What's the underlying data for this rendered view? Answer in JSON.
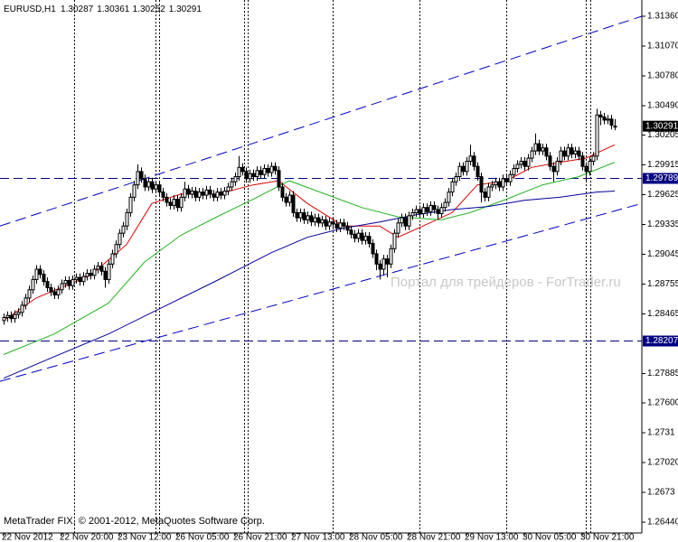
{
  "chart_data": {
    "type": "candlestick",
    "symbol": "EURUSD,H1",
    "watermark": "Портал для трейдеров - ForTrader.ru",
    "copyright": "MetaTrader FIX, © 2001-2012, MetaQuotes Software Corp.",
    "xlim": [
      -1,
      176.5
    ],
    "ylim": [
      1.26335,
      1.31518
    ],
    "yticks": [
      {
        "value": 1.3136,
        "label": "1.31360"
      },
      {
        "value": 1.3107,
        "label": "1.31070"
      },
      {
        "value": 1.3078,
        "label": "1.30780"
      },
      {
        "value": 1.3049,
        "label": "1.30490"
      },
      1.30205,
      1.29915,
      1.29625,
      1.29335,
      1.29045,
      1.28755,
      1.28465,
      1.27885,
      {
        "value": 1.276,
        "label": "1.27600"
      },
      1.2731,
      {
        "value": 1.2702,
        "label": "1.27020"
      },
      1.2673,
      {
        "value": 1.2644,
        "label": "1.26440"
      }
    ],
    "xticks": [
      {
        "value": 0,
        "label": "22 Nov 2012"
      },
      {
        "value": 16,
        "label": "22 Nov 20:00"
      },
      {
        "value": 32,
        "label": "23 Nov 12:00"
      },
      {
        "value": 48,
        "label": "26 Nov 05:00"
      },
      {
        "value": 64,
        "label": "26 Nov 21:00"
      },
      {
        "value": 80,
        "label": "27 Nov 13:00"
      },
      {
        "value": 96,
        "label": "28 Nov 05:00"
      },
      {
        "value": 112,
        "label": "28 Nov 21:00"
      },
      {
        "value": 128,
        "label": "29 Nov 13:00"
      },
      {
        "value": 144,
        "label": "30 Nov 05:00"
      },
      {
        "value": 160,
        "label": "30 Nov 21:00"
      }
    ],
    "period_separators": [
      19.5,
      42,
      43,
      66.5,
      67.5,
      91,
      115,
      139,
      161,
      162.2
    ],
    "hlines": [
      {
        "value": 1.29789,
        "label": "1.29789",
        "color": "#000080"
      },
      {
        "value": 1.28207,
        "label": "1.28207",
        "color": "#000080"
      }
    ],
    "current_price": {
      "value": 1.30291,
      "label": "1.30291",
      "color": "#000000"
    },
    "ohlc": [
      [
        1.284,
        1.2847,
        1.2836,
        1.2843
      ],
      [
        1.2843,
        1.2849,
        1.2839,
        1.2845
      ],
      [
        1.2845,
        1.2849,
        1.2838,
        1.2842
      ],
      [
        1.2842,
        1.285,
        1.2838,
        1.2846
      ],
      [
        1.2846,
        1.2852,
        1.2842,
        1.2848
      ],
      [
        1.2848,
        1.2859,
        1.2844,
        1.2855
      ],
      [
        1.2855,
        1.2866,
        1.2851,
        1.2862
      ],
      [
        1.2862,
        1.2874,
        1.2858,
        1.287
      ],
      [
        1.287,
        1.2884,
        1.2866,
        1.288
      ],
      [
        1.288,
        1.2894,
        1.2876,
        1.289
      ],
      [
        1.289,
        1.2894,
        1.2881,
        1.2885
      ],
      [
        1.2885,
        1.2889,
        1.2874,
        1.2878
      ],
      [
        1.2878,
        1.2882,
        1.2868,
        1.2872
      ],
      [
        1.2872,
        1.2876,
        1.2864,
        1.2868
      ],
      [
        1.2868,
        1.2872,
        1.2861,
        1.2865
      ],
      [
        1.2865,
        1.2874,
        1.2861,
        1.287
      ],
      [
        1.287,
        1.288,
        1.2866,
        1.2876
      ],
      [
        1.2876,
        1.2883,
        1.2872,
        1.2879
      ],
      [
        1.2879,
        1.2883,
        1.287,
        1.2874
      ],
      [
        1.2874,
        1.2884,
        1.287,
        1.288
      ],
      [
        1.288,
        1.2886,
        1.2876,
        1.2882
      ],
      [
        1.2882,
        1.2886,
        1.2874,
        1.2878
      ],
      [
        1.2878,
        1.2887,
        1.2874,
        1.2883
      ],
      [
        1.2883,
        1.289,
        1.2879,
        1.2886
      ],
      [
        1.2886,
        1.289,
        1.288,
        1.2884
      ],
      [
        1.2884,
        1.2894,
        1.288,
        1.289
      ],
      [
        1.289,
        1.2897,
        1.2886,
        1.2893
      ],
      [
        1.2893,
        1.2897,
        1.2884,
        1.2888
      ],
      [
        1.2888,
        1.2892,
        1.2872,
        1.288
      ],
      [
        1.288,
        1.2899,
        1.2876,
        1.2895
      ],
      [
        1.2895,
        1.2909,
        1.2891,
        1.2905
      ],
      [
        1.2905,
        1.2918,
        1.2901,
        1.2914
      ],
      [
        1.2914,
        1.2929,
        1.291,
        1.2925
      ],
      [
        1.2925,
        1.2936,
        1.2921,
        1.2932
      ],
      [
        1.2932,
        1.2949,
        1.2928,
        1.2945
      ],
      [
        1.2945,
        1.2964,
        1.2941,
        1.296
      ],
      [
        1.296,
        1.2976,
        1.2956,
        1.2972
      ],
      [
        1.2972,
        1.2992,
        1.2968,
        1.2985
      ],
      [
        1.2985,
        1.2989,
        1.2974,
        1.2978
      ],
      [
        1.2978,
        1.2982,
        1.2966,
        1.297
      ],
      [
        1.297,
        1.2979,
        1.2966,
        1.2975
      ],
      [
        1.2975,
        1.2979,
        1.2964,
        1.2968
      ],
      [
        1.2968,
        1.2976,
        1.2964,
        1.2972
      ],
      [
        1.2972,
        1.2976,
        1.2961,
        1.2965
      ],
      [
        1.2965,
        1.2969,
        1.2956,
        1.296
      ],
      [
        1.296,
        1.2964,
        1.2951,
        1.2955
      ],
      [
        1.2955,
        1.2959,
        1.2948,
        1.2952
      ],
      [
        1.2952,
        1.2962,
        1.2948,
        1.2958
      ],
      [
        1.2958,
        1.2962,
        1.2946,
        1.295
      ],
      [
        1.295,
        1.2964,
        1.2946,
        1.296
      ],
      [
        1.296,
        1.2975,
        1.2956,
        1.2968
      ],
      [
        1.2968,
        1.2972,
        1.2959,
        1.2963
      ],
      [
        1.2963,
        1.297,
        1.2959,
        1.2966
      ],
      [
        1.2966,
        1.297,
        1.2956,
        1.296
      ],
      [
        1.296,
        1.2969,
        1.2956,
        1.2965
      ],
      [
        1.2965,
        1.2969,
        1.2958,
        1.2962
      ],
      [
        1.2962,
        1.2971,
        1.2958,
        1.2967
      ],
      [
        1.2967,
        1.2971,
        1.2959,
        1.2963
      ],
      [
        1.2963,
        1.2967,
        1.2956,
        1.296
      ],
      [
        1.296,
        1.2969,
        1.2956,
        1.2965
      ],
      [
        1.2965,
        1.2969,
        1.2958,
        1.2962
      ],
      [
        1.2962,
        1.297,
        1.2958,
        1.2966
      ],
      [
        1.2966,
        1.2974,
        1.2962,
        1.297
      ],
      [
        1.297,
        1.2979,
        1.2966,
        1.2975
      ],
      [
        1.2975,
        1.2984,
        1.2971,
        1.298
      ],
      [
        1.298,
        1.3,
        1.2976,
        1.2989
      ],
      [
        1.2989,
        1.2993,
        1.2981,
        1.2985
      ],
      [
        1.2985,
        1.2989,
        1.2974,
        1.2978
      ],
      [
        1.2978,
        1.2987,
        1.2974,
        1.2983
      ],
      [
        1.2983,
        1.2987,
        1.2976,
        1.298
      ],
      [
        1.298,
        1.299,
        1.2976,
        1.2986
      ],
      [
        1.2986,
        1.299,
        1.2978,
        1.2982
      ],
      [
        1.2982,
        1.2992,
        1.2978,
        1.2988
      ],
      [
        1.2988,
        1.2992,
        1.298,
        1.2984
      ],
      [
        1.2984,
        1.2994,
        1.298,
        1.299
      ],
      [
        1.299,
        1.2994,
        1.2982,
        1.2986
      ],
      [
        1.2986,
        1.299,
        1.2966,
        1.297
      ],
      [
        1.297,
        1.2974,
        1.2956,
        1.296
      ],
      [
        1.296,
        1.2964,
        1.2951,
        1.2955
      ],
      [
        1.2955,
        1.2966,
        1.2951,
        1.2962
      ],
      [
        1.2962,
        1.2966,
        1.2941,
        1.2945
      ],
      [
        1.2945,
        1.2949,
        1.2936,
        1.294
      ],
      [
        1.294,
        1.2949,
        1.2936,
        1.2945
      ],
      [
        1.2945,
        1.2949,
        1.2934,
        1.2938
      ],
      [
        1.2938,
        1.2946,
        1.2934,
        1.2942
      ],
      [
        1.2942,
        1.2946,
        1.2932,
        1.2936
      ],
      [
        1.2936,
        1.2944,
        1.2932,
        1.294
      ],
      [
        1.294,
        1.2944,
        1.2931,
        1.2935
      ],
      [
        1.2935,
        1.2942,
        1.2931,
        1.2938
      ],
      [
        1.2938,
        1.2942,
        1.2928,
        1.2932
      ],
      [
        1.2932,
        1.294,
        1.2928,
        1.2936
      ],
      [
        1.2936,
        1.294,
        1.293,
        1.2934
      ],
      [
        1.2934,
        1.2938,
        1.2926,
        1.293
      ],
      [
        1.293,
        1.2939,
        1.2926,
        1.2935
      ],
      [
        1.2935,
        1.2939,
        1.2928,
        1.2932
      ],
      [
        1.2932,
        1.2936,
        1.2924,
        1.2928
      ],
      [
        1.2928,
        1.2932,
        1.292,
        1.2924
      ],
      [
        1.2924,
        1.2928,
        1.2916,
        1.292
      ],
      [
        1.292,
        1.2929,
        1.2916,
        1.2925
      ],
      [
        1.2925,
        1.2929,
        1.2914,
        1.2918
      ],
      [
        1.2918,
        1.2926,
        1.2914,
        1.2922
      ],
      [
        1.2922,
        1.2926,
        1.2911,
        1.2915
      ],
      [
        1.2915,
        1.2919,
        1.2901,
        1.2905
      ],
      [
        1.2905,
        1.2909,
        1.2889,
        1.2895
      ],
      [
        1.2895,
        1.2899,
        1.288,
        1.289
      ],
      [
        1.289,
        1.2904,
        1.2884,
        1.29
      ],
      [
        1.29,
        1.2904,
        1.2882,
        1.2895
      ],
      [
        1.2895,
        1.2914,
        1.2891,
        1.291
      ],
      [
        1.291,
        1.2929,
        1.2906,
        1.2925
      ],
      [
        1.2925,
        1.2939,
        1.2921,
        1.2935
      ],
      [
        1.2935,
        1.2944,
        1.2931,
        1.294
      ],
      [
        1.294,
        1.2944,
        1.2928,
        1.2932
      ],
      [
        1.2932,
        1.2946,
        1.2928,
        1.2942
      ],
      [
        1.2942,
        1.2949,
        1.2938,
        1.2945
      ],
      [
        1.2945,
        1.2952,
        1.2941,
        1.2948
      ],
      [
        1.2948,
        1.2952,
        1.294,
        1.2944
      ],
      [
        1.2944,
        1.2954,
        1.294,
        1.295
      ],
      [
        1.295,
        1.2954,
        1.2942,
        1.2946
      ],
      [
        1.2946,
        1.2956,
        1.2942,
        1.2952
      ],
      [
        1.2952,
        1.2956,
        1.2944,
        1.2948
      ],
      [
        1.2948,
        1.2952,
        1.2938,
        1.2944
      ],
      [
        1.2944,
        1.2954,
        1.294,
        1.295
      ],
      [
        1.295,
        1.2959,
        1.2946,
        1.2955
      ],
      [
        1.2955,
        1.2969,
        1.2951,
        1.2965
      ],
      [
        1.2965,
        1.2979,
        1.2961,
        1.2975
      ],
      [
        1.2975,
        1.2984,
        1.2971,
        1.298
      ],
      [
        1.298,
        1.2994,
        1.2976,
        1.299
      ],
      [
        1.299,
        1.2994,
        1.2981,
        1.2985
      ],
      [
        1.2985,
        1.2999,
        1.2981,
        1.2995
      ],
      [
        1.2995,
        1.3011,
        1.2991,
        1.3
      ],
      [
        1.3,
        1.3004,
        1.2986,
        1.299
      ],
      [
        1.299,
        1.2994,
        1.2976,
        1.298
      ],
      [
        1.298,
        1.2984,
        1.2955,
        1.2965
      ],
      [
        1.2965,
        1.2969,
        1.2956,
        1.296
      ],
      [
        1.296,
        1.2974,
        1.2956,
        1.297
      ],
      [
        1.297,
        1.2976,
        1.2966,
        1.2972
      ],
      [
        1.2972,
        1.2979,
        1.2968,
        1.2975
      ],
      [
        1.2975,
        1.2979,
        1.2966,
        1.297
      ],
      [
        1.297,
        1.2982,
        1.2966,
        1.2978
      ],
      [
        1.2978,
        1.2982,
        1.2971,
        1.2975
      ],
      [
        1.2975,
        1.2986,
        1.2971,
        1.2982
      ],
      [
        1.2982,
        1.2992,
        1.2978,
        1.2988
      ],
      [
        1.2988,
        1.2996,
        1.2984,
        1.2992
      ],
      [
        1.2992,
        1.2999,
        1.2988,
        1.2995
      ],
      [
        1.2995,
        1.2999,
        1.2986,
        1.299
      ],
      [
        1.299,
        1.3002,
        1.2986,
        1.2998
      ],
      [
        1.2998,
        1.3009,
        1.2994,
        1.3005
      ],
      [
        1.3005,
        1.3022,
        1.3001,
        1.3012
      ],
      [
        1.3012,
        1.3016,
        1.3001,
        1.3005
      ],
      [
        1.3005,
        1.3012,
        1.3001,
        1.3008
      ],
      [
        1.3008,
        1.3012,
        1.2996,
        1.3
      ],
      [
        1.3,
        1.3004,
        1.2986,
        1.299
      ],
      [
        1.299,
        1.2994,
        1.2975,
        1.2985
      ],
      [
        1.2985,
        1.2999,
        1.2981,
        1.2995
      ],
      [
        1.2995,
        1.3009,
        1.2991,
        1.3005
      ],
      [
        1.3005,
        1.3009,
        1.2996,
        1.3
      ],
      [
        1.3,
        1.3012,
        1.2996,
        1.3008
      ],
      [
        1.3008,
        1.3012,
        1.2998,
        1.3002
      ],
      [
        1.3002,
        1.3009,
        1.2998,
        1.3005
      ],
      [
        1.3005,
        1.3009,
        1.2996,
        1.3
      ],
      [
        1.3,
        1.3004,
        1.2986,
        1.299
      ],
      [
        1.299,
        1.2994,
        1.2976,
        1.2985
      ],
      [
        1.2985,
        1.2999,
        1.2981,
        1.2995
      ],
      [
        1.2995,
        1.3004,
        1.2991,
        1.3
      ],
      [
        1.3,
        1.3046,
        1.2996,
        1.304
      ],
      [
        1.304,
        1.3044,
        1.303,
        1.3038
      ],
      [
        1.3038,
        1.3042,
        1.3031,
        1.3035
      ],
      [
        1.3035,
        1.304,
        1.3031,
        1.3036
      ],
      [
        1.3036,
        1.304,
        1.3026,
        1.303
      ],
      [
        1.30287,
        1.30361,
        1.30252,
        1.30291
      ]
    ],
    "series": [
      {
        "color": "#e00000",
        "x": [
          0,
          9,
          24,
          34,
          41,
          49,
          59,
          69,
          76,
          84,
          94,
          104,
          109,
          116,
          124,
          131,
          139,
          146,
          154,
          161,
          169
        ],
        "values": [
          1.284,
          1.2862,
          1.2884,
          1.2914,
          1.2954,
          1.2963,
          1.2963,
          1.2972,
          1.2976,
          1.2954,
          1.2932,
          1.2932,
          1.2921,
          1.2932,
          1.2945,
          1.2972,
          1.2976,
          1.2989,
          1.2994,
          1.2998,
          1.3011
        ]
      },
      {
        "color": "#22b422",
        "x": [
          0,
          14,
          29,
          39,
          49,
          59,
          69,
          79,
          89,
          99,
          109,
          121,
          129,
          139,
          149,
          159,
          169
        ],
        "values": [
          1.2807,
          1.2827,
          1.2857,
          1.2897,
          1.2923,
          1.2941,
          1.2958,
          1.2976,
          1.2963,
          1.295,
          1.2941,
          1.2938,
          1.2945,
          1.2958,
          1.2972,
          1.298,
          1.2994
        ]
      },
      {
        "color": "#00009c",
        "x": [
          0,
          14,
          29,
          44,
          59,
          74,
          84,
          94,
          104,
          114,
          124,
          134,
          144,
          154,
          164,
          169
        ],
        "values": [
          1.2784,
          1.2805,
          1.2827,
          1.2853,
          1.2879,
          1.2906,
          1.2921,
          1.293,
          1.2936,
          1.2943,
          1.2948,
          1.2951,
          1.2957,
          1.296,
          1.2965,
          1.2966
        ]
      }
    ],
    "trendlines": [
      {
        "color": "#0000c8",
        "x": [
          -1,
          176.5
        ],
        "values": [
          1.2932,
          1.3136
        ]
      },
      {
        "color": "#0000c8",
        "x": [
          -1,
          176.5
        ],
        "values": [
          1.2781,
          1.2954
        ]
      }
    ]
  }
}
